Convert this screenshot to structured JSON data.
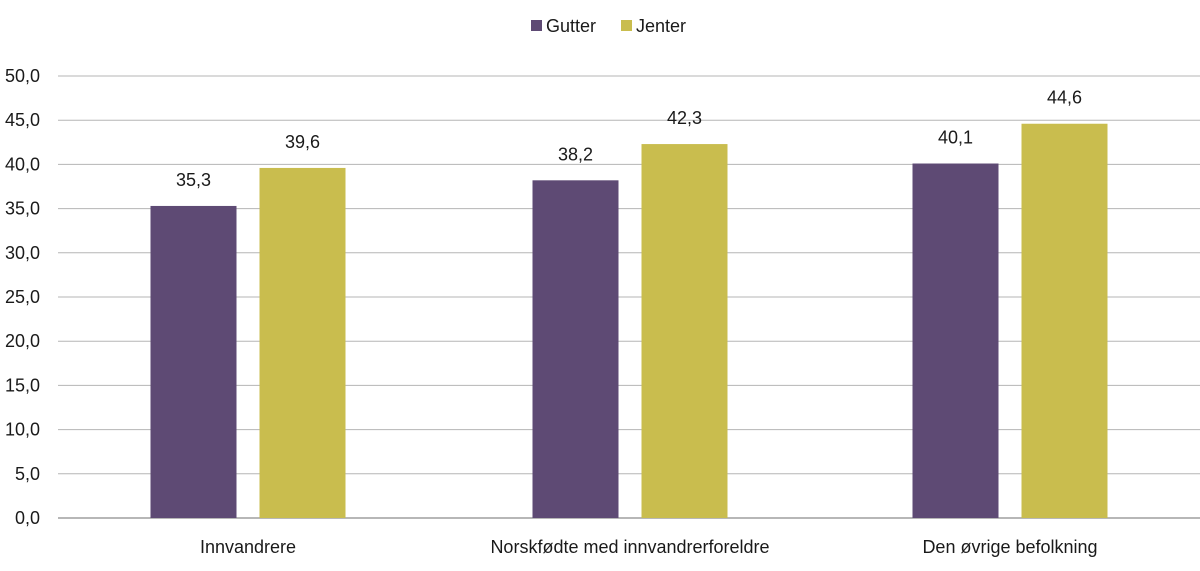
{
  "chart_data": {
    "type": "bar",
    "categories": [
      "Innvandrere",
      "Norskfødte med innvandrerforeldre",
      "Den øvrige befolkning"
    ],
    "series": [
      {
        "name": "Gutter",
        "values": [
          35.3,
          38.2,
          40.1
        ],
        "labels": [
          "35,3",
          "38,2",
          "40,1"
        ],
        "color": "#5e4a74"
      },
      {
        "name": "Jenter",
        "values": [
          39.6,
          42.3,
          44.6
        ],
        "labels": [
          "39,6",
          "42,3",
          "44,6"
        ],
        "color": "#c9bd4e"
      }
    ],
    "ylim": [
      0,
      50
    ],
    "yticks": [
      0,
      5,
      10,
      15,
      20,
      25,
      30,
      35,
      40,
      45,
      50
    ],
    "ytick_labels": [
      "0,0",
      "5,0",
      "10,0",
      "15,0",
      "20,0",
      "25,0",
      "30,0",
      "35,0",
      "40,0",
      "45,0",
      "50,0"
    ],
    "grid": true,
    "legend_position": "top-center"
  }
}
